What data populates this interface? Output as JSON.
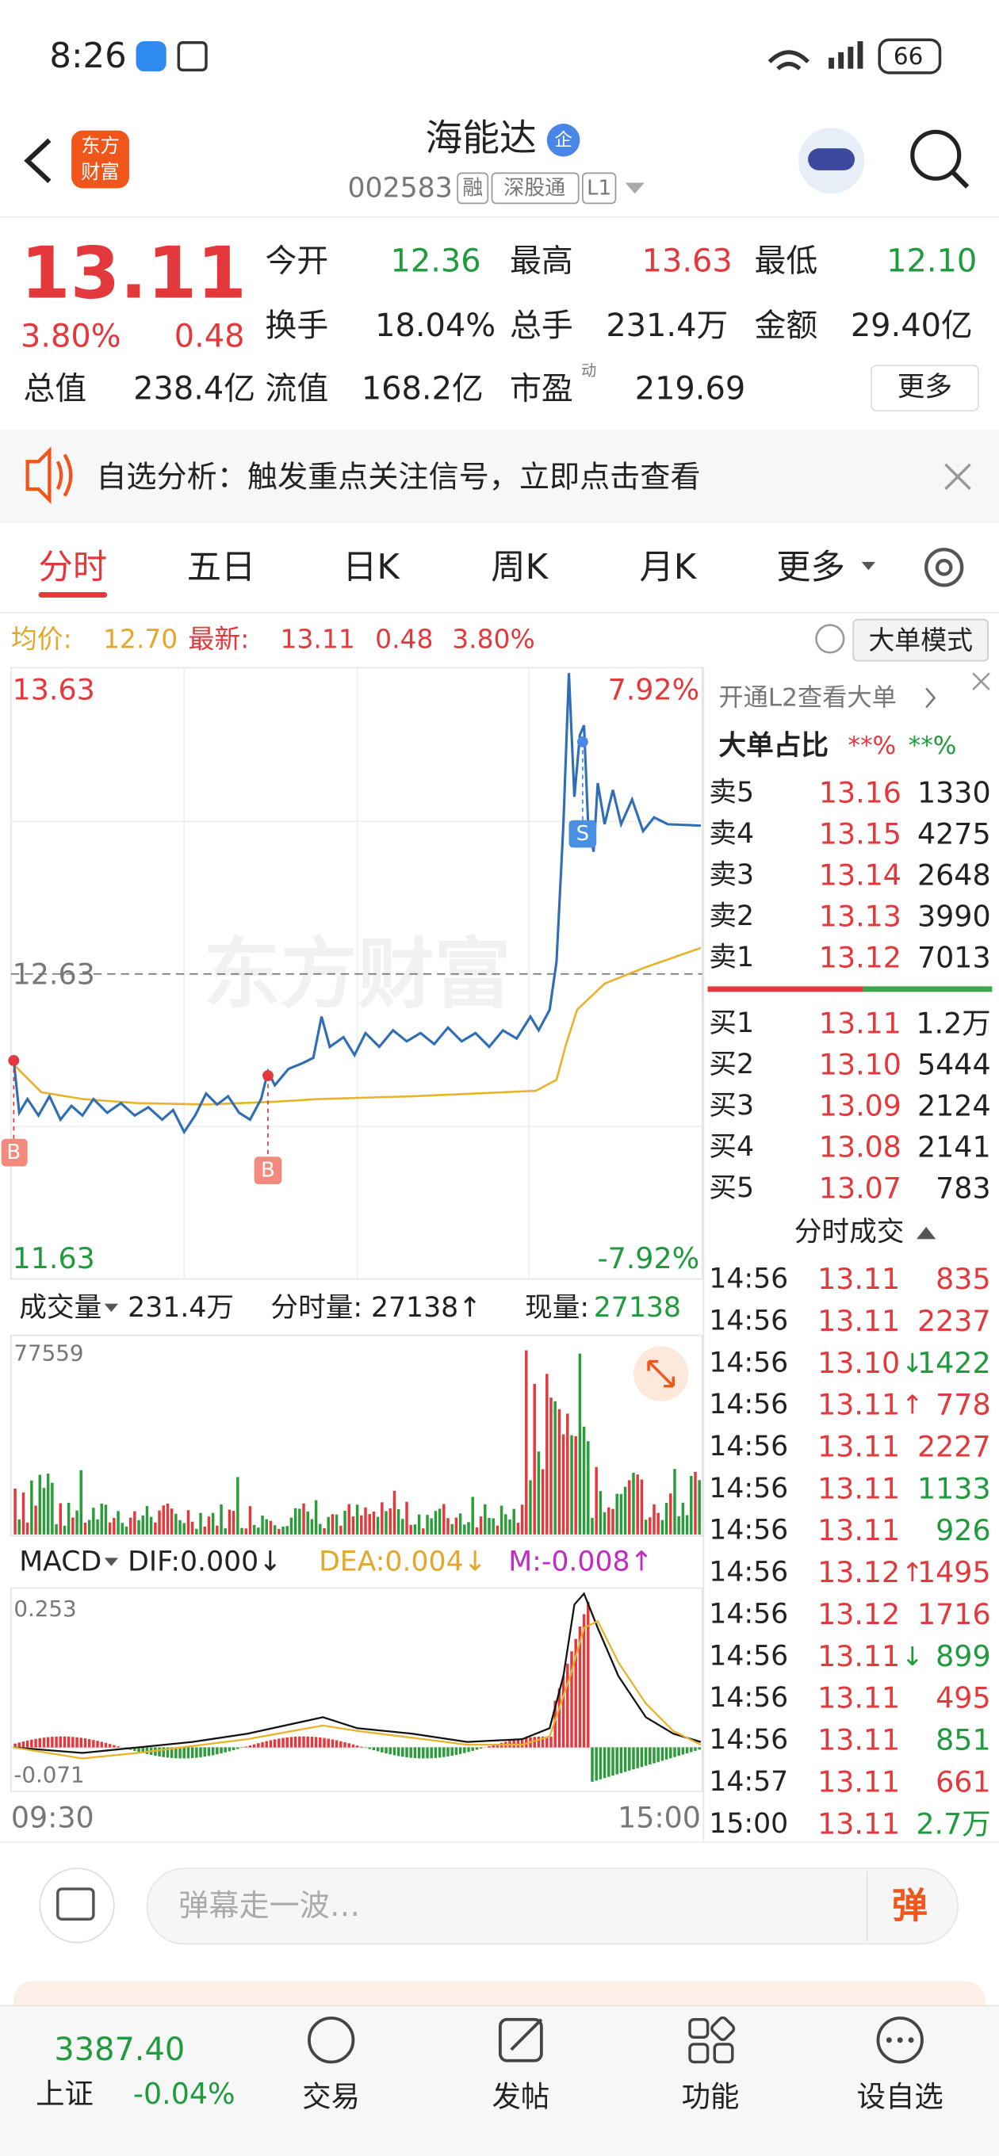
{
  "status_bar": {
    "time": "8:26",
    "battery": "66"
  },
  "header": {
    "logo": [
      "东方",
      "财富"
    ],
    "title": "海能达",
    "badge": "企",
    "code": "002583",
    "tags": [
      "融",
      "深股通",
      "L1"
    ]
  },
  "quote": {
    "price": "13.11",
    "change_pct": "3.80%",
    "change": "0.48",
    "fields": [
      {
        "label": "今开",
        "value": "12.36",
        "color": "green"
      },
      {
        "label": "最高",
        "value": "13.63",
        "color": "red"
      },
      {
        "label": "最低",
        "value": "12.10",
        "color": "green"
      },
      {
        "label": "换手",
        "value": "18.04%"
      },
      {
        "label": "总手",
        "value": "231.4万"
      },
      {
        "label": "金额",
        "value": "29.40亿"
      },
      {
        "label": "总值",
        "value": "238.4亿"
      },
      {
        "label": "流值",
        "value": "168.2亿"
      },
      {
        "label": "市盈",
        "value": "219.69",
        "sup": "动"
      }
    ],
    "more": "更多"
  },
  "notice": "自选分析：触发重点关注信号，立即点击查看",
  "tabs": [
    "分时",
    "五日",
    "日K",
    "周K",
    "月K",
    "更多"
  ],
  "chart_info": {
    "avg_label": "均价:",
    "avg": "12.70",
    "last_label": "最新:",
    "last": "13.11",
    "change": "0.48",
    "change_pct": "3.80%",
    "mode": "大单模式"
  },
  "intraday": {
    "high": "13.63",
    "high_pct": "7.92%",
    "prev_close": "12.63",
    "low": "11.63",
    "low_pct": "-7.92%",
    "watermark": "东方财富",
    "markers": [
      "B",
      "B",
      "S"
    ]
  },
  "volume": {
    "label": "成交量",
    "total": "231.4万",
    "tick_label": "分时量:",
    "tick": "27138↑",
    "now_label": "现量:",
    "now": "27138",
    "max": "77559"
  },
  "macd": {
    "label": "MACD",
    "dif": "DIF:0.000↓",
    "dea": "DEA:0.004↓",
    "m": "M:-0.008↑",
    "max": "0.253",
    "min": "-0.071"
  },
  "time_axis": [
    "09:30",
    "15:00"
  ],
  "order_book": {
    "promo": "开通L2查看大单",
    "ratio_label": "大单占比",
    "ratio_buy": "**%",
    "ratio_sell": "**%",
    "asks": [
      {
        "label": "卖5",
        "price": "13.16",
        "volume": "1330"
      },
      {
        "label": "卖4",
        "price": "13.15",
        "volume": "4275"
      },
      {
        "label": "卖3",
        "price": "13.14",
        "volume": "2648"
      },
      {
        "label": "卖2",
        "price": "13.13",
        "volume": "3990"
      },
      {
        "label": "卖1",
        "price": "13.12",
        "volume": "7013"
      }
    ],
    "bids": [
      {
        "label": "买1",
        "price": "13.11",
        "volume": "1.2万"
      },
      {
        "label": "买2",
        "price": "13.10",
        "volume": "5444"
      },
      {
        "label": "买3",
        "price": "13.09",
        "volume": "2124"
      },
      {
        "label": "买4",
        "price": "13.08",
        "volume": "2141"
      },
      {
        "label": "买5",
        "price": "13.07",
        "volume": "783"
      }
    ]
  },
  "trades": {
    "title": "分时成交",
    "rows": [
      {
        "time": "14:56",
        "price": "13.11",
        "volume": "835",
        "color": "red"
      },
      {
        "time": "14:56",
        "price": "13.11",
        "volume": "2237",
        "color": "red"
      },
      {
        "time": "14:56",
        "price": "13.10",
        "arrow": "↓",
        "volume": "1422",
        "color": "green"
      },
      {
        "time": "14:56",
        "price": "13.11",
        "arrow": "↑",
        "volume": "778",
        "color": "red"
      },
      {
        "time": "14:56",
        "price": "13.11",
        "volume": "2227",
        "color": "red"
      },
      {
        "time": "14:56",
        "price": "13.11",
        "volume": "1133",
        "color": "green"
      },
      {
        "time": "14:56",
        "price": "13.11",
        "volume": "926",
        "color": "green"
      },
      {
        "time": "14:56",
        "price": "13.12",
        "arrow": "↑",
        "volume": "1495",
        "color": "red"
      },
      {
        "time": "14:56",
        "price": "13.12",
        "volume": "1716",
        "color": "red"
      },
      {
        "time": "14:56",
        "price": "13.11",
        "arrow": "↓",
        "volume": "899",
        "color": "green"
      },
      {
        "time": "14:56",
        "price": "13.11",
        "volume": "495",
        "color": "red"
      },
      {
        "time": "14:56",
        "price": "13.11",
        "volume": "851",
        "color": "green"
      },
      {
        "time": "14:57",
        "price": "13.11",
        "volume": "661",
        "color": "red"
      },
      {
        "time": "15:00",
        "price": "13.11",
        "volume": "2.7万",
        "color": "green"
      }
    ]
  },
  "comment": {
    "placeholder": "弹幕走一波…",
    "button": "弹"
  },
  "bottom_nav": {
    "index_value": "3387.40",
    "index_name": "上证",
    "index_change": "-0.04%",
    "items": [
      "交易",
      "发帖",
      "功能",
      "设自选"
    ]
  }
}
